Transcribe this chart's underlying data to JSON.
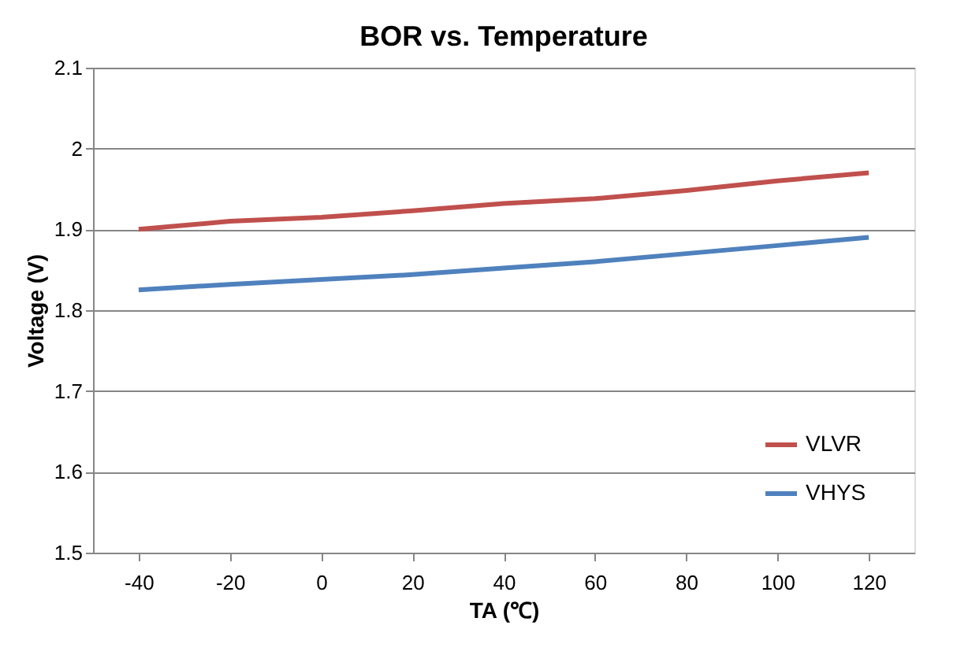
{
  "chart_data": {
    "type": "line",
    "title": "BOR vs. Temperature",
    "xlabel": "TA (℃)",
    "ylabel": "Voltage (V)",
    "categories": [
      "-40",
      "-20",
      "0",
      "20",
      "40",
      "60",
      "80",
      "100",
      "120"
    ],
    "series": [
      {
        "name": "VLVR",
        "color": "#c0504d",
        "values": [
          1.9,
          1.91,
          1.915,
          1.923,
          1.932,
          1.938,
          1.948,
          1.96,
          1.97
        ]
      },
      {
        "name": "VHYS",
        "color": "#4f81bd",
        "values": [
          1.825,
          1.832,
          1.838,
          1.844,
          1.852,
          1.86,
          1.87,
          1.88,
          1.89
        ]
      }
    ],
    "ylim": [
      1.5,
      2.1
    ],
    "yticks": [
      1.5,
      1.6,
      1.7,
      1.8,
      1.9,
      2,
      2.1
    ],
    "grid": "y",
    "legend": "bottom right",
    "marker": "none",
    "line_style": "solid"
  }
}
